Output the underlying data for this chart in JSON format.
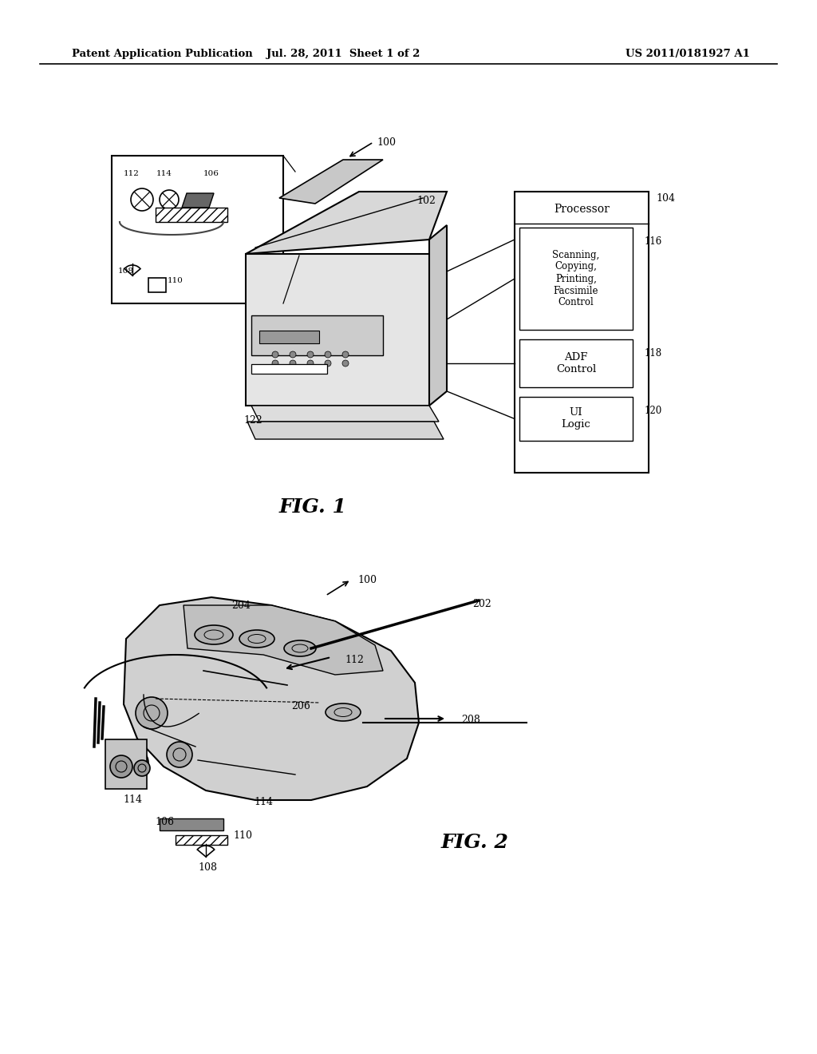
{
  "bg_color": "#ffffff",
  "header_left": "Patent Application Publication",
  "header_mid": "Jul. 28, 2011  Sheet 1 of 2",
  "header_right": "US 2011/0181927 A1",
  "fig1_label": "FIG. 1",
  "fig2_label": "FIG. 2",
  "processor_label": "Processor",
  "proc_box1": "Scanning,\nCopying,\nPrinting,\nFacsimile\nControl",
  "proc_box2": "ADF\nControl",
  "proc_box3": "UI\nLogic",
  "lbl_100_1": "100",
  "lbl_102": "102",
  "lbl_104": "104",
  "lbl_106_1": "106",
  "lbl_108_1": "108",
  "lbl_110_1": "110",
  "lbl_112_1": "112",
  "lbl_114_1": "114",
  "lbl_116": "116",
  "lbl_118": "118",
  "lbl_120": "120",
  "lbl_122": "122",
  "lbl_100_2": "100",
  "lbl_106_2": "106",
  "lbl_108_2": "108",
  "lbl_110_2": "110",
  "lbl_112_2": "112",
  "lbl_114_2a": "114",
  "lbl_114_2b": "114",
  "lbl_202": "202",
  "lbl_204": "204",
  "lbl_206": "206",
  "lbl_208": "208"
}
